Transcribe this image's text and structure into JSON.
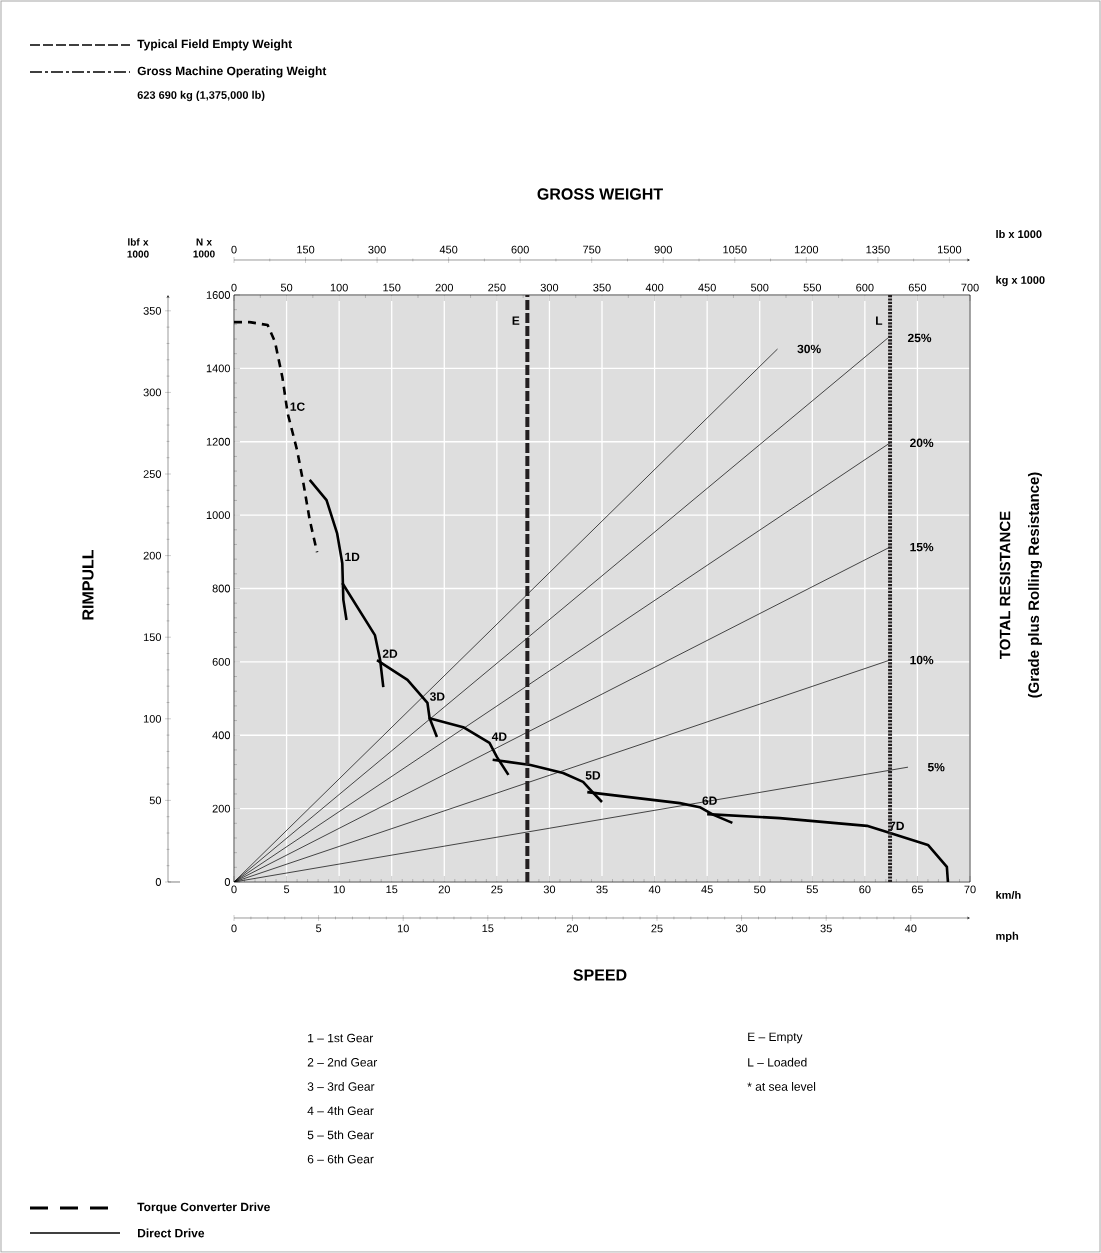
{
  "chart_data": [
    {
      "type": "line",
      "xlabel": "km/h",
      "ylabel": "N x 1000",
      "y2label": "lbf x 1000",
      "x2label": "mph",
      "xlim": [
        0,
        70
      ],
      "xticks": [
        0,
        5,
        10,
        15,
        20,
        25,
        30,
        35,
        40,
        45,
        50,
        55,
        60,
        65,
        70
      ],
      "x2lim": [
        0,
        43.5
      ],
      "x2ticks": [
        0,
        5,
        10,
        15,
        20,
        25,
        30,
        35,
        40
      ],
      "ylim": [
        0,
        1600
      ],
      "yticks": [
        0,
        200,
        400,
        600,
        800,
        1000,
        1200,
        1400,
        1600
      ],
      "y2lim": [
        0,
        359.7
      ],
      "y2ticks": [
        0,
        50,
        100,
        150,
        200,
        250,
        300,
        350
      ],
      "grid": true,
      "series": [
        {
          "name": "1C",
          "color": "#000000",
          "line_style": "dashed",
          "x": [
            0,
            1.5,
            3.2,
            3.9,
            4.6,
            5.1,
            6.0,
            6.6,
            7.2,
            7.9
          ],
          "values": [
            1526,
            1526,
            1518,
            1472,
            1376,
            1278,
            1177,
            1087,
            987,
            899
          ]
        },
        {
          "name": "1D",
          "color": "#000000",
          "x": [
            7.2,
            8.8,
            9.8,
            10.3,
            10.4,
            10.7
          ],
          "values": [
            1096,
            1041,
            951,
            869,
            769,
            714
          ]
        },
        {
          "name": "2D",
          "color": "#000000",
          "x": [
            10.3,
            13.4,
            13.9,
            14.2
          ],
          "values": [
            815,
            673,
            605,
            531
          ]
        },
        {
          "name": "3D",
          "color": "#000000",
          "x": [
            13.6,
            16.5,
            18.4,
            18.6,
            19.3
          ],
          "values": [
            605,
            551,
            488,
            447,
            395
          ]
        },
        {
          "name": "4D",
          "color": "#000000",
          "x": [
            18.5,
            21.8,
            24.3,
            25.0,
            26.1
          ],
          "values": [
            447,
            422,
            379,
            341,
            292
          ]
        },
        {
          "name": "5D",
          "color": "#000000",
          "x": [
            24.6,
            28.2,
            31.3,
            33.2,
            34.1,
            35.0
          ],
          "values": [
            333,
            319,
            297,
            273,
            245,
            218
          ]
        },
        {
          "name": "6D",
          "color": "#000000",
          "x": [
            33.6,
            42.4,
            44.3,
            45.6,
            47.4
          ],
          "values": [
            245,
            215,
            204,
            183,
            161
          ]
        },
        {
          "name": "7D",
          "color": "#000000",
          "x": [
            45.0,
            51.9,
            60.2,
            62.1,
            66.0,
            67.8,
            67.9
          ],
          "values": [
            185,
            174,
            153,
            136,
            101,
            41,
            0
          ]
        }
      ],
      "annotations": [
        "Typical Field Empty Weight",
        "Gross Machine Operating Weight",
        "623 690 kg (1,375,000 lb)",
        "GROSS WEIGHT",
        "RIMPULL",
        "TOTAL RESISTANCE",
        "(Grade plus Rolling Resistance)",
        "SPEED",
        "1 – 1st Gear",
        "2 – 2nd Gear",
        "3 – 3rd Gear",
        "4 – 4th Gear",
        "5 – 5th Gear",
        "6 – 6th Gear",
        "E – Empty",
        "L – Loaded",
        "* at sea level",
        "Torque Converter Drive",
        "Direct Drive"
      ]
    },
    {
      "type": "line",
      "xlabel": "kg x 1000",
      "x2label": "lb x 1000",
      "xlim": [
        0,
        700
      ],
      "xticks": [
        0,
        50,
        100,
        150,
        200,
        250,
        300,
        350,
        400,
        450,
        500,
        550,
        600,
        650,
        700
      ],
      "x2lim": [
        0,
        1543.2
      ],
      "x2ticks": [
        0,
        150,
        300,
        450,
        600,
        750,
        900,
        1050,
        1200,
        1350,
        1500
      ],
      "ylim": [
        0,
        1600
      ],
      "tick_labels": "x",
      "series": [
        {
          "name": "30%",
          "color": "#000000",
          "x": [
            0,
            517
          ],
          "values": [
            0,
            1453
          ]
        },
        {
          "name": "25%",
          "color": "#000000",
          "x": [
            0,
            622
          ],
          "values": [
            0,
            1483
          ]
        },
        {
          "name": "20%",
          "color": "#000000",
          "x": [
            0,
            624
          ],
          "values": [
            0,
            1197
          ]
        },
        {
          "name": "15%",
          "color": "#000000",
          "x": [
            0,
            624
          ],
          "values": [
            0,
            913
          ]
        },
        {
          "name": "10%",
          "color": "#000000",
          "x": [
            0,
            624
          ],
          "values": [
            0,
            605
          ]
        },
        {
          "name": "5%",
          "color": "#000000",
          "x": [
            0,
            641
          ],
          "values": [
            0,
            313
          ]
        }
      ],
      "ref_lines": [
        {
          "axis": "x",
          "value": 279,
          "label": "E",
          "line_style": "dashed",
          "color": "#231f20"
        },
        {
          "axis": "x",
          "value": 624,
          "label": "L",
          "line_style": "dotted",
          "color": "#231f20"
        }
      ]
    }
  ]
}
